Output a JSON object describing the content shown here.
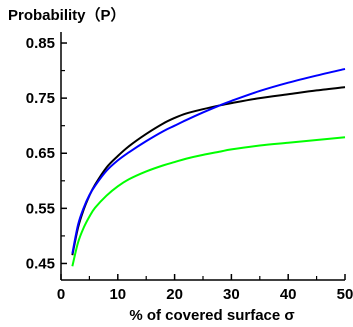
{
  "chart_data": {
    "type": "line",
    "title": "",
    "ylabel": "Probability（P）",
    "xlabel": "% of covered surface σ",
    "xlim": [
      0,
      50
    ],
    "ylim": [
      0.42,
      0.87
    ],
    "xticks": [
      0,
      10,
      20,
      30,
      40,
      50
    ],
    "yticks": [
      0.45,
      0.55,
      0.65,
      0.75,
      0.85
    ],
    "ytick_labels": [
      "0.45",
      "0.55",
      "0.65",
      "0.75",
      "0.85"
    ],
    "grid": false,
    "legend": "none",
    "series": [
      {
        "color": "#000000",
        "x": [
          2,
          3,
          4,
          5,
          6,
          8,
          10,
          12,
          15,
          18,
          20,
          22,
          25,
          28,
          30,
          35,
          40,
          45,
          50
        ],
        "y": [
          0.465,
          0.515,
          0.548,
          0.573,
          0.593,
          0.624,
          0.645,
          0.663,
          0.685,
          0.704,
          0.714,
          0.722,
          0.73,
          0.737,
          0.741,
          0.75,
          0.757,
          0.764,
          0.77
        ]
      },
      {
        "color": "#0000ff",
        "x": [
          2,
          3,
          4,
          5,
          6,
          8,
          10,
          12,
          15,
          18,
          20,
          22,
          25,
          28,
          30,
          35,
          40,
          45,
          50
        ],
        "y": [
          0.468,
          0.52,
          0.551,
          0.574,
          0.591,
          0.618,
          0.637,
          0.652,
          0.672,
          0.69,
          0.7,
          0.71,
          0.724,
          0.737,
          0.745,
          0.763,
          0.778,
          0.791,
          0.803
        ]
      },
      {
        "color": "#00ff00",
        "x": [
          2,
          3,
          4,
          5,
          6,
          8,
          10,
          12,
          15,
          18,
          20,
          22,
          25,
          28,
          30,
          35,
          40,
          45,
          50
        ],
        "y": [
          0.445,
          0.488,
          0.515,
          0.535,
          0.551,
          0.573,
          0.59,
          0.603,
          0.617,
          0.628,
          0.634,
          0.64,
          0.647,
          0.653,
          0.657,
          0.664,
          0.669,
          0.674,
          0.679
        ]
      }
    ]
  }
}
